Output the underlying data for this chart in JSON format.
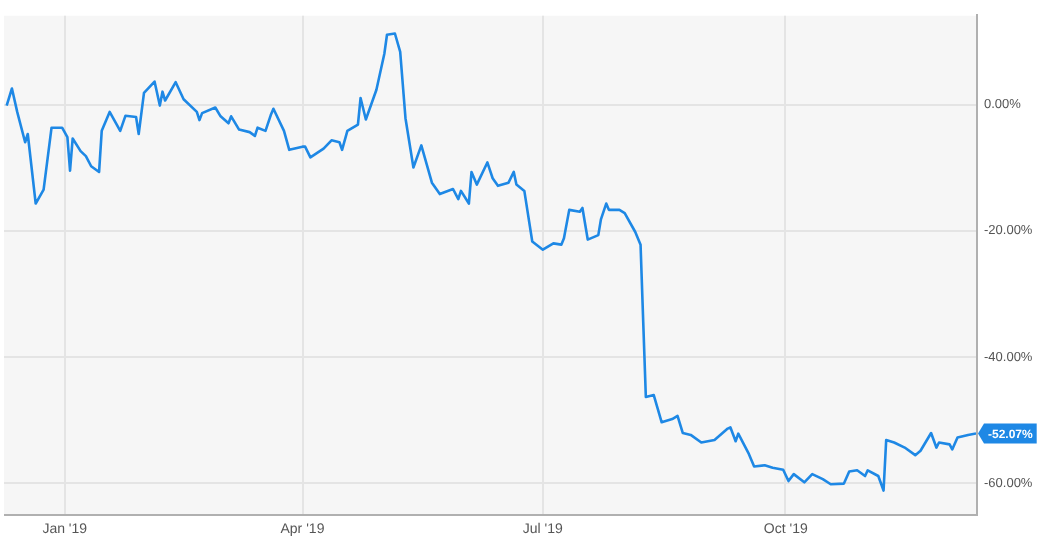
{
  "chart_data": {
    "type": "line",
    "x": [
      "2018-12-10",
      "2018-12-12",
      "2018-12-14",
      "2018-12-17",
      "2018-12-18",
      "2018-12-21",
      "2018-12-24",
      "2018-12-27",
      "2018-12-31",
      "2019-01-02",
      "2019-01-03",
      "2019-01-04",
      "2019-01-07",
      "2019-01-09",
      "2019-01-11",
      "2019-01-14",
      "2019-01-15",
      "2019-01-18",
      "2019-01-22",
      "2019-01-24",
      "2019-01-28",
      "2019-01-29",
      "2019-01-31",
      "2019-02-04",
      "2019-02-06",
      "2019-02-07",
      "2019-02-08",
      "2019-02-12",
      "2019-02-15",
      "2019-02-20",
      "2019-02-21",
      "2019-02-22",
      "2019-02-27",
      "2019-03-01",
      "2019-03-04",
      "2019-03-05",
      "2019-03-08",
      "2019-03-12",
      "2019-03-14",
      "2019-03-15",
      "2019-03-18",
      "2019-03-20",
      "2019-03-21",
      "2019-03-25",
      "2019-03-27",
      "2019-04-01",
      "2019-04-02",
      "2019-04-04",
      "2019-04-09",
      "2019-04-12",
      "2019-04-15",
      "2019-04-16",
      "2019-04-18",
      "2019-04-22",
      "2019-04-23",
      "2019-04-25",
      "2019-04-29",
      "2019-05-02",
      "2019-05-03",
      "2019-05-06",
      "2019-05-08",
      "2019-05-10",
      "2019-05-13",
      "2019-05-16",
      "2019-05-20",
      "2019-05-23",
      "2019-05-28",
      "2019-05-30",
      "2019-05-31",
      "2019-06-03",
      "2019-06-04",
      "2019-06-06",
      "2019-06-10",
      "2019-06-12",
      "2019-06-14",
      "2019-06-18",
      "2019-06-20",
      "2019-06-21",
      "2019-06-24",
      "2019-06-27",
      "2019-07-01",
      "2019-07-05",
      "2019-07-08",
      "2019-07-09",
      "2019-07-11",
      "2019-07-15",
      "2019-07-16",
      "2019-07-18",
      "2019-07-22",
      "2019-07-23",
      "2019-07-25",
      "2019-07-26",
      "2019-07-30",
      "2019-08-01",
      "2019-08-05",
      "2019-08-07",
      "2019-08-08",
      "2019-08-09",
      "2019-08-12",
      "2019-08-15",
      "2019-08-19",
      "2019-08-21",
      "2019-08-23",
      "2019-08-26",
      "2019-08-30",
      "2019-09-04",
      "2019-09-09",
      "2019-09-10",
      "2019-09-12",
      "2019-09-13",
      "2019-09-17",
      "2019-09-19",
      "2019-09-23",
      "2019-09-26",
      "2019-09-30",
      "2019-10-02",
      "2019-10-04",
      "2019-10-08",
      "2019-10-11",
      "2019-10-15",
      "2019-10-18",
      "2019-10-23",
      "2019-10-25",
      "2019-10-28",
      "2019-10-31",
      "2019-11-01",
      "2019-11-05",
      "2019-11-07",
      "2019-11-08",
      "2019-11-11",
      "2019-11-15",
      "2019-11-19",
      "2019-11-21",
      "2019-11-25",
      "2019-11-27",
      "2019-11-28",
      "2019-12-02",
      "2019-12-03",
      "2019-12-05",
      "2019-12-09",
      "2019-12-12"
    ],
    "series": [
      {
        "color": "#1e88e5",
        "values": [
          -0.2,
          2.5,
          -1.2,
          -6,
          -4.7,
          -15.7,
          -13.5,
          -3.7,
          -3.7,
          -5.2,
          -10.5,
          -5.4,
          -7.4,
          -8.2,
          -9.8,
          -10.7,
          -4.2,
          -1.2,
          -4.2,
          -1.8,
          -2,
          -4.7,
          1.8,
          3.6,
          -0.2,
          2,
          0.6,
          3.5,
          0.8,
          -1.2,
          -2.5,
          -1.4,
          -0.5,
          -1.9,
          -3,
          -1.9,
          -4,
          -4.4,
          -5,
          -3.7,
          -4.2,
          -1.7,
          -0.7,
          -4.2,
          -7.2,
          -6.7,
          -6.7,
          -8.4,
          -7,
          -5.7,
          -6,
          -7.2,
          -4.2,
          -3.2,
          1,
          -2.4,
          2.3,
          8,
          11,
          11.2,
          8.3,
          -2.2,
          -10,
          -6.5,
          -12.4,
          -14.2,
          -13.4,
          -15,
          -13.7,
          -15.7,
          -10.7,
          -12.7,
          -9.2,
          -11.7,
          -12.9,
          -12.4,
          -10.7,
          -12.7,
          -13.7,
          -21.7,
          -23,
          -22,
          -22.2,
          -21.2,
          -16.7,
          -17,
          -16.4,
          -21.4,
          -20.7,
          -18.2,
          -15.7,
          -16.7,
          -16.7,
          -17.2,
          -20.2,
          -22.2,
          -34.3,
          -46.3,
          -46,
          -50.3,
          -49.8,
          -49.3,
          -52,
          -52.3,
          -53.5,
          -53.1,
          -51.3,
          -51.1,
          -53.3,
          -52.1,
          -55.3,
          -57.3,
          -57.1,
          -57.5,
          -57.8,
          -59.6,
          -58.5,
          -59.8,
          -58.5,
          -59.3,
          -60.1,
          -60,
          -58.1,
          -57.9,
          -58.8,
          -57.9,
          -58.8,
          -61.1,
          -53.1,
          -53.5,
          -54.3,
          -55.5,
          -54.8,
          -52,
          -54.3,
          -53.5,
          -53.8,
          -54.6,
          -52.7,
          -52.3,
          -52.07
        ]
      }
    ],
    "xlim": [
      "2018-12-09",
      "2019-12-12"
    ],
    "xticks": [
      {
        "value": "2019-01-01",
        "label": "Jan '19"
      },
      {
        "value": "2019-04-01",
        "label": "Apr '19"
      },
      {
        "value": "2019-07-01",
        "label": "Jul '19"
      },
      {
        "value": "2019-10-01",
        "label": "Oct '19"
      }
    ],
    "ylim": [
      -65,
      14
    ],
    "yticks": [
      {
        "value": -60,
        "label": "-60.00%"
      },
      {
        "value": -40,
        "label": "-40.00%"
      },
      {
        "value": -20,
        "label": "-20.00%"
      },
      {
        "value": 0,
        "label": "0.00%"
      }
    ],
    "grid": true,
    "marker": "none",
    "line_style": "solid",
    "annotations": [
      {
        "text": "-52.07%",
        "x": "2019-12-12",
        "y": -52.07
      }
    ]
  }
}
